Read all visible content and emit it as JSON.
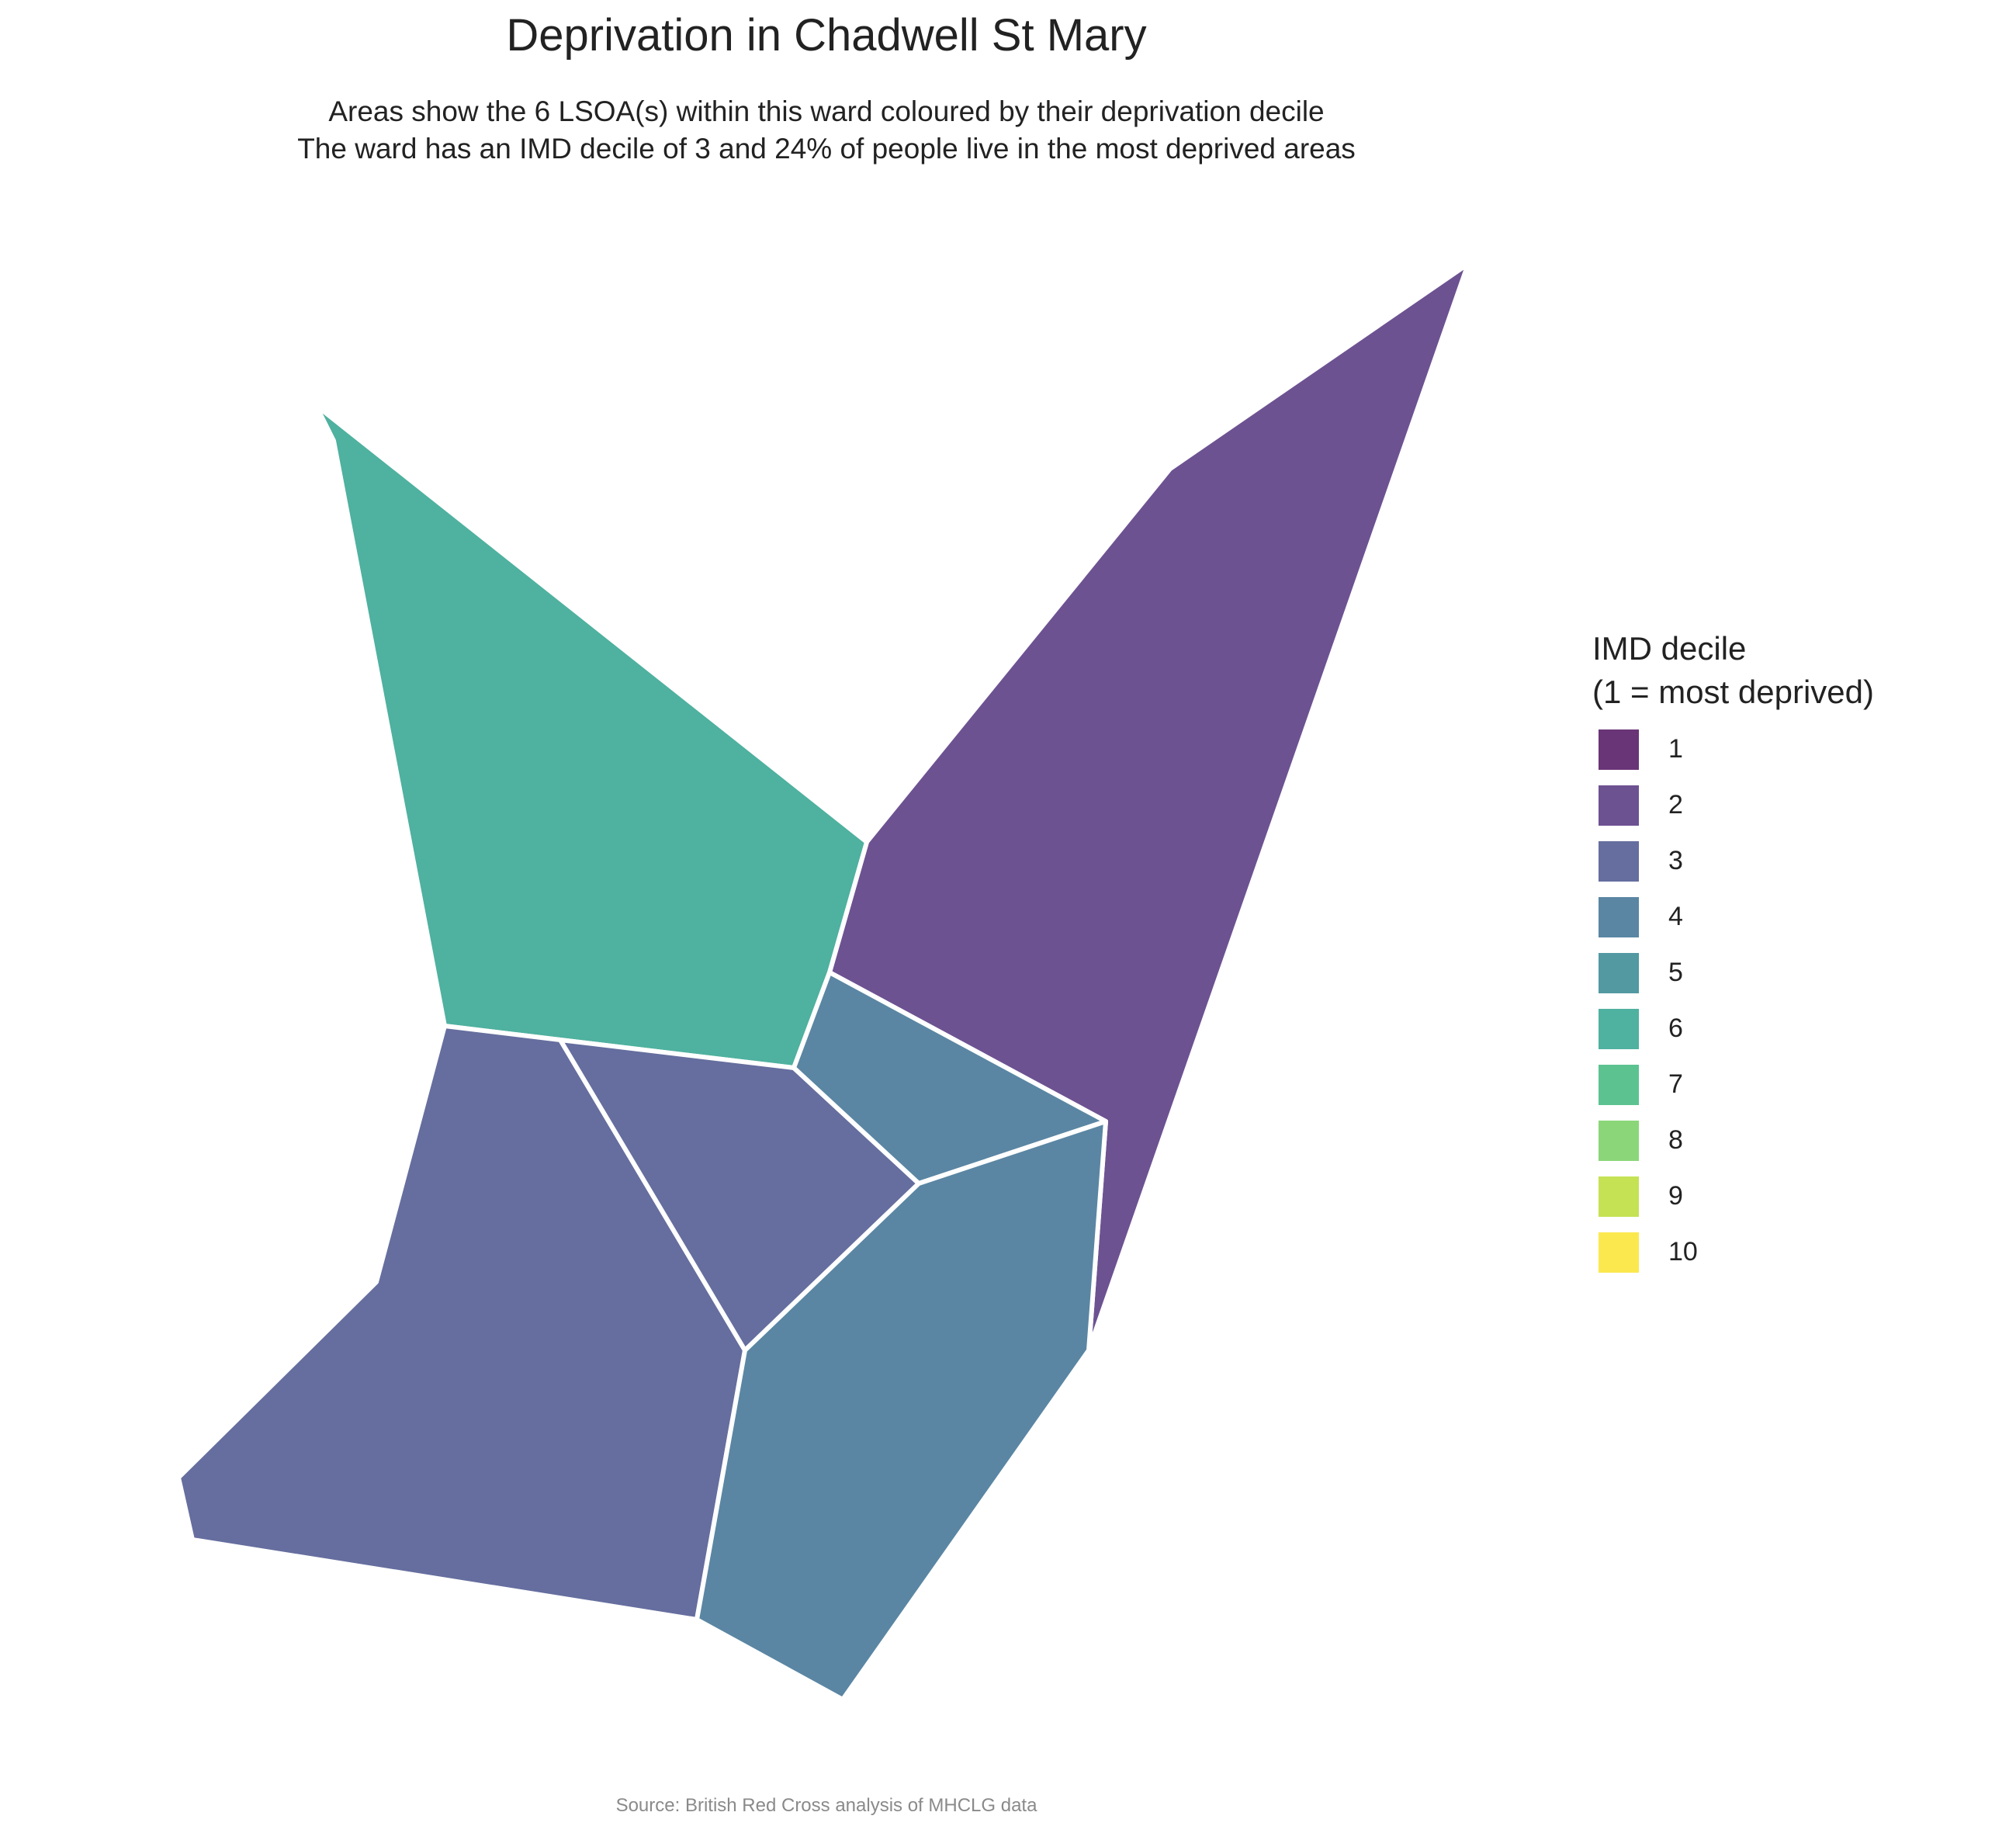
{
  "title": "Deprivation in Chadwell St Mary",
  "subtitle_line1": "Areas show the 6 LSOA(s) within this ward coloured by their deprivation decile",
  "subtitle_line2": "The ward has an IMD decile of 3 and 24% of people live in the most deprived areas",
  "legend": {
    "title_line1": "IMD decile",
    "title_line2": "(1 = most deprived)",
    "items": [
      {
        "label": "1",
        "color": "#6a3577"
      },
      {
        "label": "2",
        "color": "#6d5292"
      },
      {
        "label": "3",
        "color": "#656e9e"
      },
      {
        "label": "4",
        "color": "#5a86a3"
      },
      {
        "label": "5",
        "color": "#5299a2"
      },
      {
        "label": "6",
        "color": "#4fb19f"
      },
      {
        "label": "7",
        "color": "#5cc390"
      },
      {
        "label": "8",
        "color": "#8bd679"
      },
      {
        "label": "9",
        "color": "#c4e254"
      },
      {
        "label": "10",
        "color": "#fbe84f"
      }
    ]
  },
  "areas": [
    {
      "id": "lsoa-north-east",
      "decile": 2
    },
    {
      "id": "lsoa-north-west",
      "decile": 6
    },
    {
      "id": "lsoa-south-west",
      "decile": 3
    },
    {
      "id": "lsoa-central",
      "decile": 3
    },
    {
      "id": "lsoa-east-small",
      "decile": 4
    },
    {
      "id": "lsoa-south-east",
      "decile": 4
    }
  ],
  "source": "Source: British Red Cross analysis of MHCLG data"
}
